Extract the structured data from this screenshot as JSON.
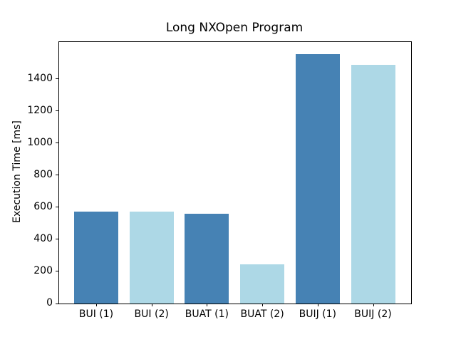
{
  "chart_data": {
    "type": "bar",
    "title": "Long NXOpen Program",
    "xlabel": "",
    "ylabel": "Execution Time [ms]",
    "categories": [
      "BUI (1)",
      "BUI (2)",
      "BUAT (1)",
      "BUAT (2)",
      "BUIJ (1)",
      "BUIJ (2)"
    ],
    "values": [
      575,
      575,
      560,
      245,
      1555,
      1490
    ],
    "bar_colors": [
      "#4682b4",
      "#add8e6",
      "#4682b4",
      "#add8e6",
      "#4682b4",
      "#add8e6"
    ],
    "yticks": [
      0,
      200,
      400,
      600,
      800,
      1000,
      1200,
      1400
    ],
    "ylim": [
      0,
      1630
    ],
    "grid": false,
    "legend": "none",
    "colors": {
      "bar_primary": "#4682b4",
      "bar_secondary": "#add8e6",
      "axis": "#000000",
      "background": "#ffffff"
    }
  }
}
